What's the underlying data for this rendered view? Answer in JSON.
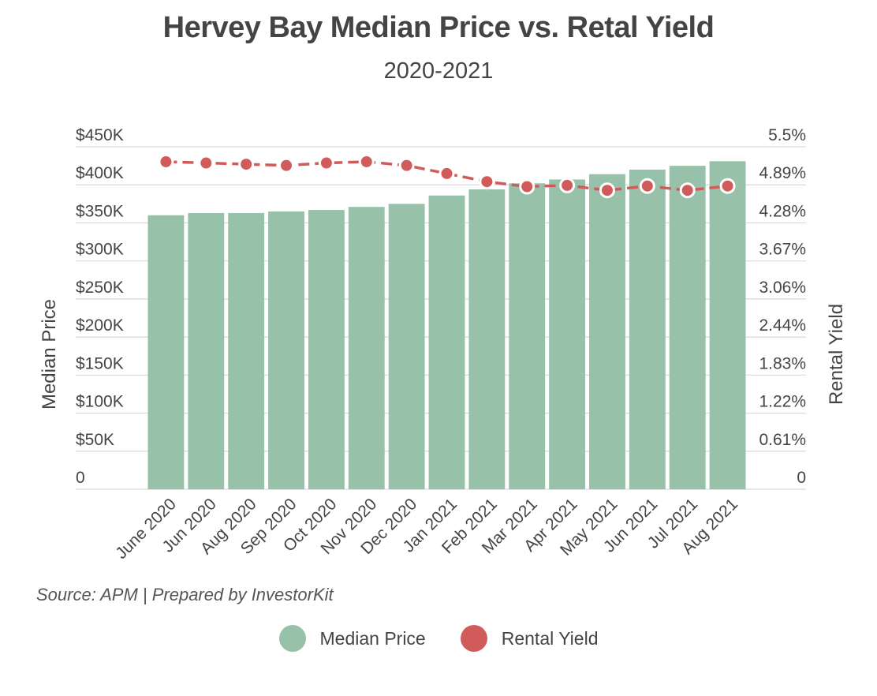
{
  "header": {
    "title": "Hervey Bay Median Price vs. Retal Yield",
    "subtitle": "2020-2021"
  },
  "footer": {
    "source": "Source: APM | Prepared by InvestorKit"
  },
  "colors": {
    "bar": "#97c1a9",
    "line": "#d05b5a",
    "grid": "#d9d9d9"
  },
  "chart_data": {
    "type": "bar",
    "categories": [
      "June 2020",
      "Jun 2020",
      "Aug 2020",
      "Sep 2020",
      "Oct 2020",
      "Nov 2020",
      "Dec 2020",
      "Jan 2021",
      "Feb 2021",
      "Mar 2021",
      "Apr 2021",
      "May 2021",
      "Jun 2021",
      "Jul 2021",
      "Aug 2021"
    ],
    "series": [
      {
        "name": "Median Price",
        "type": "bar",
        "axis": "left",
        "values": [
          360000,
          363000,
          363000,
          365000,
          367000,
          371000,
          375000,
          386000,
          394000,
          402000,
          407000,
          414000,
          420000,
          425000,
          431000
        ]
      },
      {
        "name": "Rental Yield",
        "type": "line",
        "axis": "right",
        "values": [
          5.26,
          5.24,
          5.22,
          5.2,
          5.24,
          5.26,
          5.2,
          5.07,
          4.94,
          4.86,
          4.88,
          4.8,
          4.87,
          4.8,
          4.87
        ]
      }
    ],
    "left_axis": {
      "label": "Median Price",
      "range": [
        0,
        450000
      ],
      "ticks": [
        "0",
        "$50K",
        "$100K",
        "$150K",
        "$200K",
        "$250K",
        "$300K",
        "$350K",
        "$400K",
        "$450K"
      ]
    },
    "right_axis": {
      "label": "Rental Yield",
      "range": [
        0,
        5.5
      ],
      "ticks": [
        "0",
        "0.61%",
        "1.22%",
        "1.83%",
        "2.44%",
        "3.06%",
        "3.67%",
        "4.28%",
        "4.89%",
        "5.5%"
      ]
    },
    "grid": true,
    "legend": {
      "position": "bottom",
      "entries": [
        "Median Price",
        "Rental Yield"
      ]
    }
  }
}
